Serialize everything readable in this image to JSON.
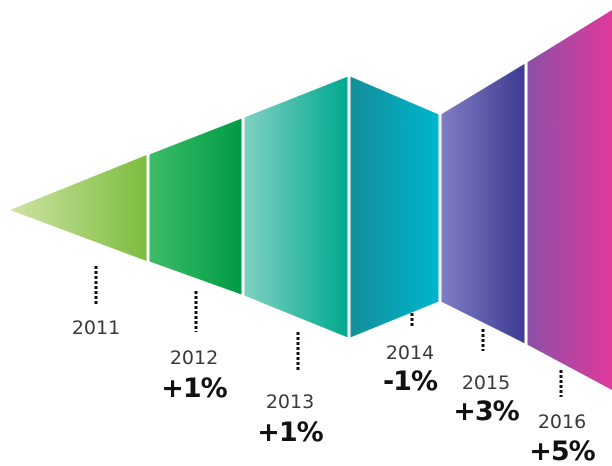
{
  "chart_data": {
    "type": "funnel",
    "title": "",
    "categories": [
      "2011",
      "2012",
      "2013",
      "2014",
      "2015",
      "2016"
    ],
    "changes": [
      "",
      "+1%",
      "+1%",
      "-1%",
      "+3%",
      "+5%"
    ],
    "segment_colors": [
      [
        "#cfe3a3",
        "#7cbd3f"
      ],
      [
        "#3dbd6a",
        "#009a44"
      ],
      [
        "#7fd1c2",
        "#00a98f"
      ],
      [
        "#138f99",
        "#00b5cf"
      ],
      [
        "#7f7ec3",
        "#3f3a93"
      ],
      [
        "#8b50a8",
        "#e0399b"
      ]
    ]
  }
}
